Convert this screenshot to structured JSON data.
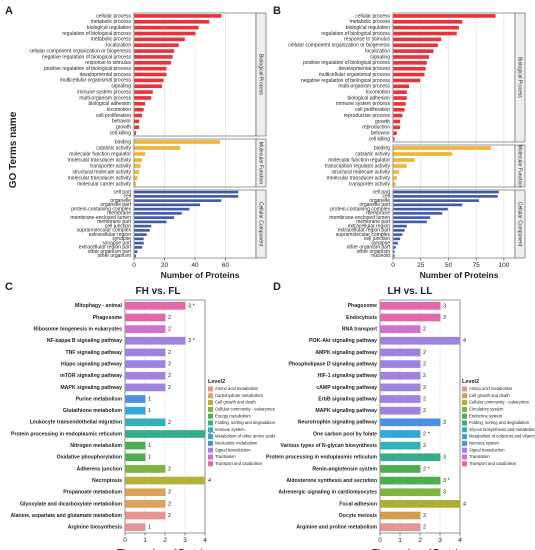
{
  "panel_letters": {
    "a": "A",
    "b": "B",
    "c": "C",
    "d": "D"
  },
  "y_title_top": "GO Terms name",
  "colors": {
    "bp": "#e8333c",
    "mf": "#f2b53a",
    "cc": "#3f5bad",
    "grid": "#dddddd"
  },
  "legend_title": "Level2",
  "legend_c": [
    {
      "label": "Amino acid metabolism",
      "color": "#e69591"
    },
    {
      "label": "Carbohydrate metabolism",
      "color": "#dca25c"
    },
    {
      "label": "Cell growth and death",
      "color": "#b5b23a"
    },
    {
      "label": "Cellular community - eukaryotes",
      "color": "#7fb43f"
    },
    {
      "label": "Energy metabolism",
      "color": "#4cae4f"
    },
    {
      "label": "Folding, sorting and degradation",
      "color": "#35ad8a"
    },
    {
      "label": "Immune system",
      "color": "#33b0b8"
    },
    {
      "label": "Metabolism of other amino acids",
      "color": "#33a7d8"
    },
    {
      "label": "Nucleotide metabolism",
      "color": "#4c8fe3"
    },
    {
      "label": "Signal transduction",
      "color": "#9f83df"
    },
    {
      "label": "Translation",
      "color": "#d46ed0"
    },
    {
      "label": "Transport and catabolism",
      "color": "#e468a8"
    }
  ],
  "legend_d": [
    {
      "label": "Amino acid metabolism",
      "color": "#e69591"
    },
    {
      "label": "Cell growth and death",
      "color": "#d39c4d"
    },
    {
      "label": "Cellular community - eukaryotes",
      "color": "#aeae36"
    },
    {
      "label": "Circulatory system",
      "color": "#7fb43f"
    },
    {
      "label": "Endocrine system",
      "color": "#4cae4f"
    },
    {
      "label": "Folding, sorting and degradation",
      "color": "#35ad8a"
    },
    {
      "label": "Glycan biosynthesis and metabolism",
      "color": "#33b0b8"
    },
    {
      "label": "Metabolism of cofactors and vitamins",
      "color": "#33a7d8"
    },
    {
      "label": "Nervous system",
      "color": "#4c8fe3"
    },
    {
      "label": "Signal transduction",
      "color": "#9f83df"
    },
    {
      "label": "Translation",
      "color": "#d46ed0"
    },
    {
      "label": "Transport and catabolism",
      "color": "#e468a8"
    }
  ],
  "chart_data": [
    {
      "panel": "A",
      "type": "bar",
      "orientation": "horizontal",
      "xlabel": "Number of Proteins",
      "ylabel": "GO Terms name",
      "xlim": [
        0,
        80
      ],
      "xticks": [
        0,
        20,
        40,
        60
      ],
      "groups": [
        {
          "name": "Biological Process",
          "color_key": "bp",
          "terms": [
            {
              "label": "cellular process",
              "value": 57
            },
            {
              "label": "metabolic process",
              "value": 49
            },
            {
              "label": "biological regulation",
              "value": 42
            },
            {
              "label": "regulation of biological process",
              "value": 40
            },
            {
              "label": "metabolic process",
              "value": 33
            },
            {
              "label": "localization",
              "value": 29
            },
            {
              "label": "cellular component organization or biogenesis",
              "value": 26
            },
            {
              "label": "negative regulation of biological process",
              "value": 25
            },
            {
              "label": "response to stimulus",
              "value": 24
            },
            {
              "label": "positive regulation of biological process",
              "value": 21
            },
            {
              "label": "developmental process",
              "value": 21
            },
            {
              "label": "multicellular organismal process",
              "value": 19
            },
            {
              "label": "signaling",
              "value": 18
            },
            {
              "label": "immune system process",
              "value": 12
            },
            {
              "label": "multi-organism process",
              "value": 11
            },
            {
              "label": "biological adhesion",
              "value": 7
            },
            {
              "label": "locomotion",
              "value": 6
            },
            {
              "label": "cell proliferation",
              "value": 5
            },
            {
              "label": "behavior",
              "value": 3
            },
            {
              "label": "growth",
              "value": 3
            },
            {
              "label": "cell killing",
              "value": 1
            }
          ]
        },
        {
          "name": "Molecular Function",
          "color_key": "mf",
          "terms": [
            {
              "label": "binding",
              "value": 56
            },
            {
              "label": "catalytic activity",
              "value": 30
            },
            {
              "label": "molecular function regulator",
              "value": 7
            },
            {
              "label": "molecular transducer activity",
              "value": 5
            },
            {
              "label": "transporter activity",
              "value": 4
            },
            {
              "label": "structural molecule activity",
              "value": 3
            },
            {
              "label": "molecular transducer activity",
              "value": 2
            },
            {
              "label": "molecular carrier activity",
              "value": 1
            }
          ]
        },
        {
          "name": "Cellular Component",
          "color_key": "cc",
          "terms": [
            {
              "label": "cell part",
              "value": 68
            },
            {
              "label": "cell",
              "value": 68
            },
            {
              "label": "organelle",
              "value": 57
            },
            {
              "label": "organelle part",
              "value": 43
            },
            {
              "label": "protein-containing complex",
              "value": 36
            },
            {
              "label": "membrane",
              "value": 31
            },
            {
              "label": "membrane-enclosed lumen",
              "value": 26
            },
            {
              "label": "membrane part",
              "value": 21
            },
            {
              "label": "cell junction",
              "value": 11
            },
            {
              "label": "supramolecular complex",
              "value": 10
            },
            {
              "label": "extracellular region",
              "value": 8
            },
            {
              "label": "synapse",
              "value": 6
            },
            {
              "label": "synapse part",
              "value": 6
            },
            {
              "label": "extracellular region part",
              "value": 5
            },
            {
              "label": "other organism part",
              "value": 2
            },
            {
              "label": "other organism",
              "value": 1
            }
          ]
        }
      ]
    },
    {
      "panel": "B",
      "type": "bar",
      "orientation": "horizontal",
      "xlabel": "Number of Proteins",
      "ylabel": "",
      "xlim": [
        0,
        110
      ],
      "xticks": [
        0,
        25,
        50,
        75,
        100
      ],
      "groups": [
        {
          "name": "Biological Process",
          "color_key": "bp",
          "terms": [
            {
              "label": "cellular process",
              "value": 92
            },
            {
              "label": "metabolic process",
              "value": 62
            },
            {
              "label": "biological regulation",
              "value": 59
            },
            {
              "label": "regulation of biological process",
              "value": 57
            },
            {
              "label": "response to stimulus",
              "value": 43
            },
            {
              "label": "cellular component organization or biogenesis",
              "value": 40
            },
            {
              "label": "localization",
              "value": 36
            },
            {
              "label": "signaling",
              "value": 32
            },
            {
              "label": "positive regulation of biological process",
              "value": 30
            },
            {
              "label": "developmental process",
              "value": 29
            },
            {
              "label": "multicellular organismal process",
              "value": 28
            },
            {
              "label": "negative regulation of biological process",
              "value": 24
            },
            {
              "label": "multi-organism process",
              "value": 14
            },
            {
              "label": "locomotion",
              "value": 12
            },
            {
              "label": "biological adhesion",
              "value": 12
            },
            {
              "label": "immune system process",
              "value": 11
            },
            {
              "label": "cell proliferation",
              "value": 10
            },
            {
              "label": "reproductive process",
              "value": 8
            },
            {
              "label": "growth",
              "value": 6
            },
            {
              "label": "reproduction",
              "value": 6
            },
            {
              "label": "behavior",
              "value": 3
            },
            {
              "label": "cell killing",
              "value": 1
            }
          ]
        },
        {
          "name": "Molecular Function",
          "color_key": "mf",
          "terms": [
            {
              "label": "binding",
              "value": 88
            },
            {
              "label": "catalytic activity",
              "value": 53
            },
            {
              "label": "molecular function regulator",
              "value": 19
            },
            {
              "label": "transcription regulator activity",
              "value": 12
            },
            {
              "label": "structural molecule activity",
              "value": 5
            },
            {
              "label": "molecular transducer activity",
              "value": 3
            },
            {
              "label": "transporter activity",
              "value": 2
            }
          ]
        },
        {
          "name": "Cellular Component",
          "color_key": "cc",
          "terms": [
            {
              "label": "cell part",
              "value": 95
            },
            {
              "label": "cell",
              "value": 94
            },
            {
              "label": "organelle",
              "value": 77
            },
            {
              "label": "organelle part",
              "value": 62
            },
            {
              "label": "protein-containing complex",
              "value": 49
            },
            {
              "label": "membrane",
              "value": 44
            },
            {
              "label": "membrane-enclosed lumen",
              "value": 33
            },
            {
              "label": "membrane part",
              "value": 30
            },
            {
              "label": "extracellular region",
              "value": 12
            },
            {
              "label": "extracellular region part",
              "value": 10
            },
            {
              "label": "supramolecular complex",
              "value": 8
            },
            {
              "label": "cell junction",
              "value": 6
            },
            {
              "label": "synapse",
              "value": 4
            },
            {
              "label": "other organism part",
              "value": 2
            },
            {
              "label": "other organism",
              "value": 1
            },
            {
              "label": "nucleoid",
              "value": 1
            }
          ]
        }
      ]
    },
    {
      "panel": "C",
      "type": "bar",
      "orientation": "horizontal",
      "title": "FH vs. FL",
      "xlabel": "The number of Proteins",
      "xlim": [
        0,
        4
      ],
      "xticks": [
        0,
        1,
        2,
        3,
        4
      ],
      "terms": [
        {
          "label": "Mitophagy - animal",
          "value": 3,
          "display": "3 *",
          "cat": 11
        },
        {
          "label": "Phagosome",
          "value": 2,
          "display": "2",
          "cat": 11
        },
        {
          "label": "Ribosome biogenesis in eukaryotes",
          "value": 2,
          "display": "2",
          "cat": 10
        },
        {
          "label": "NF-kappa B signaling pathway",
          "value": 3,
          "display": "3 *",
          "cat": 9
        },
        {
          "label": "TNF signaling pathway",
          "value": 2,
          "display": "2",
          "cat": 9
        },
        {
          "label": "Hippo signaling pathway",
          "value": 2,
          "display": "2",
          "cat": 9
        },
        {
          "label": "mTOR signaling pathway",
          "value": 2,
          "display": "2",
          "cat": 9
        },
        {
          "label": "MAPK signaling pathway",
          "value": 2,
          "display": "2",
          "cat": 9
        },
        {
          "label": "Purine metabolism",
          "value": 1,
          "display": "1",
          "cat": 8
        },
        {
          "label": "Glutathione metabolism",
          "value": 1,
          "display": "1",
          "cat": 7
        },
        {
          "label": "Leukocyte transendothelial migration",
          "value": 2,
          "display": "2",
          "cat": 6
        },
        {
          "label": "Protein processing in endoplasmic reticulum",
          "value": 4,
          "display": "4 *",
          "cat": 5
        },
        {
          "label": "Nitrogen metabolism",
          "value": 1,
          "display": "1",
          "cat": 4
        },
        {
          "label": "Oxidative phosphorylation",
          "value": 1,
          "display": "1",
          "cat": 4
        },
        {
          "label": "Adherens junction",
          "value": 2,
          "display": "2",
          "cat": 3
        },
        {
          "label": "Necroptosis",
          "value": 4,
          "display": "4",
          "cat": 2
        },
        {
          "label": "Propanoate metabolism",
          "value": 2,
          "display": "2",
          "cat": 1
        },
        {
          "label": "Glyoxylate and dicarboxylate metabolism",
          "value": 2,
          "display": "2",
          "cat": 1
        },
        {
          "label": "Alanine, aspartate and glutamate metabolism",
          "value": 2,
          "display": "2",
          "cat": 0
        },
        {
          "label": "Arginine biosynthesis",
          "value": 1,
          "display": "1",
          "cat": 0
        }
      ]
    },
    {
      "panel": "D",
      "type": "bar",
      "orientation": "horizontal",
      "title": "LH vs. LL",
      "xlabel": "The number of Proteins",
      "xlim": [
        0,
        4
      ],
      "xticks": [
        0,
        1,
        2,
        3,
        4
      ],
      "terms": [
        {
          "label": "Phagosome",
          "value": 3,
          "display": "3",
          "cat": 11
        },
        {
          "label": "Endocytosis",
          "value": 3,
          "display": "3",
          "cat": 11
        },
        {
          "label": "RNA transport",
          "value": 2,
          "display": "2",
          "cat": 10
        },
        {
          "label": "PI3K-Akt signaling pathway",
          "value": 4,
          "display": "4",
          "cat": 9
        },
        {
          "label": "AMPK signaling pathway",
          "value": 2,
          "display": "2",
          "cat": 9
        },
        {
          "label": "Phospholipase D signaling pathway",
          "value": 2,
          "display": "2",
          "cat": 9
        },
        {
          "label": "HIF-1 signaling pathway",
          "value": 2,
          "display": "2",
          "cat": 9
        },
        {
          "label": "cAMP signaling pathway",
          "value": 2,
          "display": "2",
          "cat": 9
        },
        {
          "label": "ErbB signaling pathway",
          "value": 2,
          "display": "2",
          "cat": 9
        },
        {
          "label": "MAPK signaling pathway",
          "value": 2,
          "display": "2",
          "cat": 9
        },
        {
          "label": "Neurotrophin signaling pathway",
          "value": 3,
          "display": "3",
          "cat": 8
        },
        {
          "label": "One carbon pool by folate",
          "value": 2,
          "display": "2 *",
          "cat": 7
        },
        {
          "label": "Various types of N-glycan biosynthesis",
          "value": 2,
          "display": "2",
          "cat": 6
        },
        {
          "label": "Protein processing in endoplasmic reticulum",
          "value": 3,
          "display": "3",
          "cat": 5
        },
        {
          "label": "Renin-angiotensin system",
          "value": 2,
          "display": "2 *",
          "cat": 4
        },
        {
          "label": "Aldosterone synthesis and secretion",
          "value": 3,
          "display": "3 *",
          "cat": 4
        },
        {
          "label": "Adrenergic signaling in cardiomyocytes",
          "value": 3,
          "display": "3",
          "cat": 3
        },
        {
          "label": "Focal adhesion",
          "value": 4,
          "display": "4",
          "cat": 2
        },
        {
          "label": "Oocyte meiosis",
          "value": 2,
          "display": "2",
          "cat": 1
        },
        {
          "label": "Arginine and proline metabolism",
          "value": 2,
          "display": "2",
          "cat": 0
        }
      ]
    }
  ]
}
